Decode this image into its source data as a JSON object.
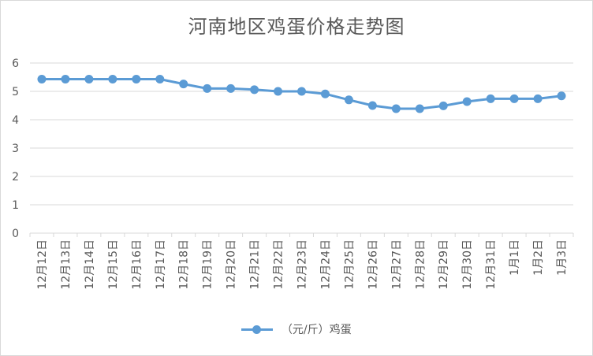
{
  "chart_data": {
    "type": "line",
    "title": "河南地区鸡蛋价格走势图",
    "categories": [
      "12月12日",
      "12月13日",
      "12月14日",
      "12月15日",
      "12月16日",
      "12月17日",
      "12月18日",
      "12月19日",
      "12月20日",
      "12月21日",
      "12月22日",
      "12月23日",
      "12月24日",
      "12月25日",
      "12月26日",
      "12月27日",
      "12月28日",
      "12月29日",
      "12月30日",
      "12月31日",
      "1月1日",
      "1月2日",
      "1月3日"
    ],
    "series": [
      {
        "name": "（元/斤）鸡蛋",
        "values": [
          5.43,
          5.43,
          5.43,
          5.43,
          5.43,
          5.43,
          5.26,
          5.1,
          5.1,
          5.06,
          5.0,
          5.0,
          4.91,
          4.7,
          4.5,
          4.39,
          4.39,
          4.49,
          4.64,
          4.74,
          4.74,
          4.74,
          4.84
        ]
      }
    ],
    "ylim": [
      0,
      6
    ],
    "yticks": [
      "0",
      "1",
      "2",
      "3",
      "4",
      "5",
      "6"
    ],
    "grid": true,
    "legend": "bottom",
    "colors": {
      "series": "#5b9bd5",
      "grid": "#d9d9d9",
      "text": "#595959"
    }
  }
}
